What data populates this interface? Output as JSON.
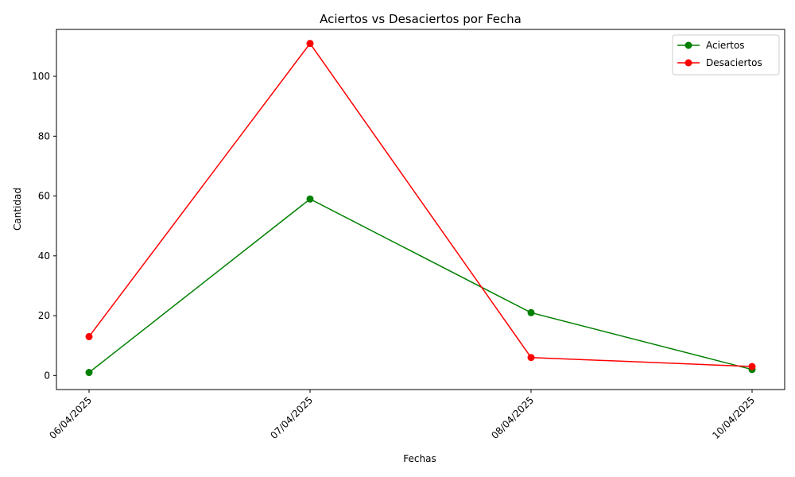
{
  "chart_data": {
    "type": "line",
    "title": "Aciertos vs Desaciertos por Fecha",
    "xlabel": "Fechas",
    "ylabel": "Cantidad",
    "categories": [
      "06/04/2025",
      "07/04/2025",
      "08/04/2025",
      "10/04/2025"
    ],
    "ylim": [
      -4.7,
      115.7
    ],
    "yticks": [
      0,
      20,
      40,
      60,
      80,
      100
    ],
    "x_tick_rotation_deg": 45,
    "grid": false,
    "legend_position": "top-right",
    "series": [
      {
        "name": "Aciertos",
        "color": "#008000",
        "marker": "circle",
        "values": [
          1,
          59,
          21,
          2
        ]
      },
      {
        "name": "Desaciertos",
        "color": "#ff0000",
        "marker": "circle",
        "values": [
          13,
          111,
          6,
          3
        ]
      }
    ]
  }
}
